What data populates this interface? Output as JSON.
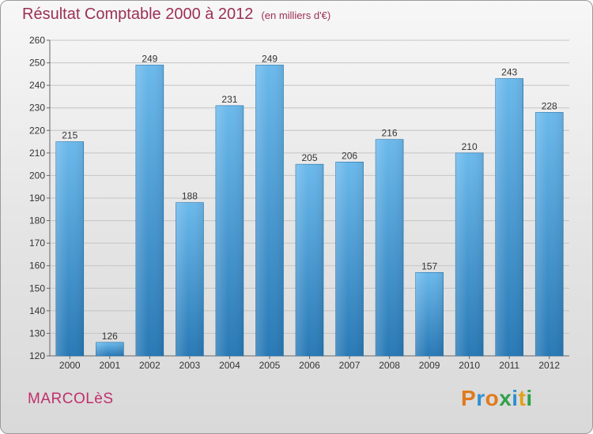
{
  "header": {
    "title": "Résultat Comptable 2000 à 2012",
    "subtitle": "(en milliers d'€)"
  },
  "footer": {
    "commune": "MARCOLèS",
    "logo_text": "Proxiti"
  },
  "colors": {
    "title": "#9c2f55",
    "bar_light": "#6bb9ec",
    "bar_dark": "#2879b6",
    "logo": [
      "#e07a1c",
      "#2f8fd0",
      "#e07a1c",
      "#2ea04b",
      "#2f8fd0",
      "#e0a21c",
      "#2ea04b"
    ]
  },
  "chart_data": {
    "type": "bar",
    "categories": [
      "2000",
      "2001",
      "2002",
      "2003",
      "2004",
      "2005",
      "2006",
      "2007",
      "2008",
      "2009",
      "2010",
      "2011",
      "2012"
    ],
    "values": [
      215,
      126,
      249,
      188,
      231,
      249,
      205,
      206,
      216,
      157,
      210,
      243,
      228
    ],
    "data_labels": [
      "215",
      "126",
      "249",
      "188",
      "231",
      "249",
      "205",
      "206",
      "216",
      "157",
      "210",
      "243",
      "228"
    ],
    "yticks": [
      120,
      130,
      140,
      150,
      160,
      170,
      180,
      190,
      200,
      210,
      220,
      230,
      240,
      250,
      260
    ],
    "ylim": [
      120,
      260
    ],
    "grid": true,
    "title": "Résultat Comptable 2000 à 2012",
    "xlabel": "",
    "ylabel": ""
  }
}
